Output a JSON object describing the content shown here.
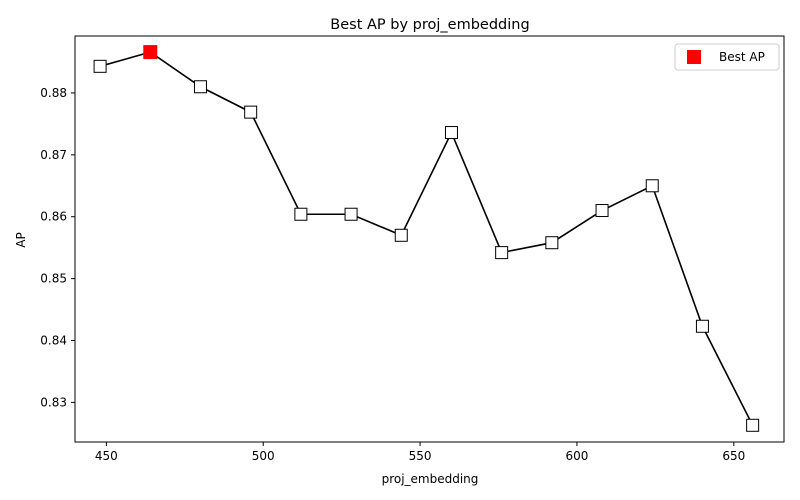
{
  "chart_data": {
    "type": "line",
    "title": "Best AP by proj_embedding",
    "xlabel": "proj_embedding",
    "ylabel": "AP",
    "xlim": [
      440,
      666
    ],
    "ylim": [
      0.8236,
      0.8892
    ],
    "xticks": [
      450,
      500,
      550,
      600,
      650
    ],
    "yticks": [
      0.83,
      0.84,
      0.85,
      0.86,
      0.87,
      0.88
    ],
    "xtick_labels": [
      "450",
      "500",
      "550",
      "600",
      "650"
    ],
    "ytick_labels": [
      "0.83",
      "0.84",
      "0.85",
      "0.86",
      "0.87",
      "0.88"
    ],
    "grid": false,
    "legend_position": "top-right",
    "series": [
      {
        "x": [
          448,
          464,
          480,
          496,
          512,
          528,
          544,
          560,
          576,
          592,
          608,
          624,
          640,
          656
        ],
        "values": [
          0.8843,
          0.8866,
          0.881,
          0.8769,
          0.8604,
          0.8604,
          0.857,
          0.8736,
          0.8542,
          0.8558,
          0.861,
          0.865,
          0.8423,
          0.8263
        ],
        "color": "#000000",
        "marker_fill": "#ffffff"
      }
    ],
    "highlight": {
      "label": "Best AP",
      "x": 464,
      "value": 0.8866,
      "color": "#ff0000"
    }
  }
}
